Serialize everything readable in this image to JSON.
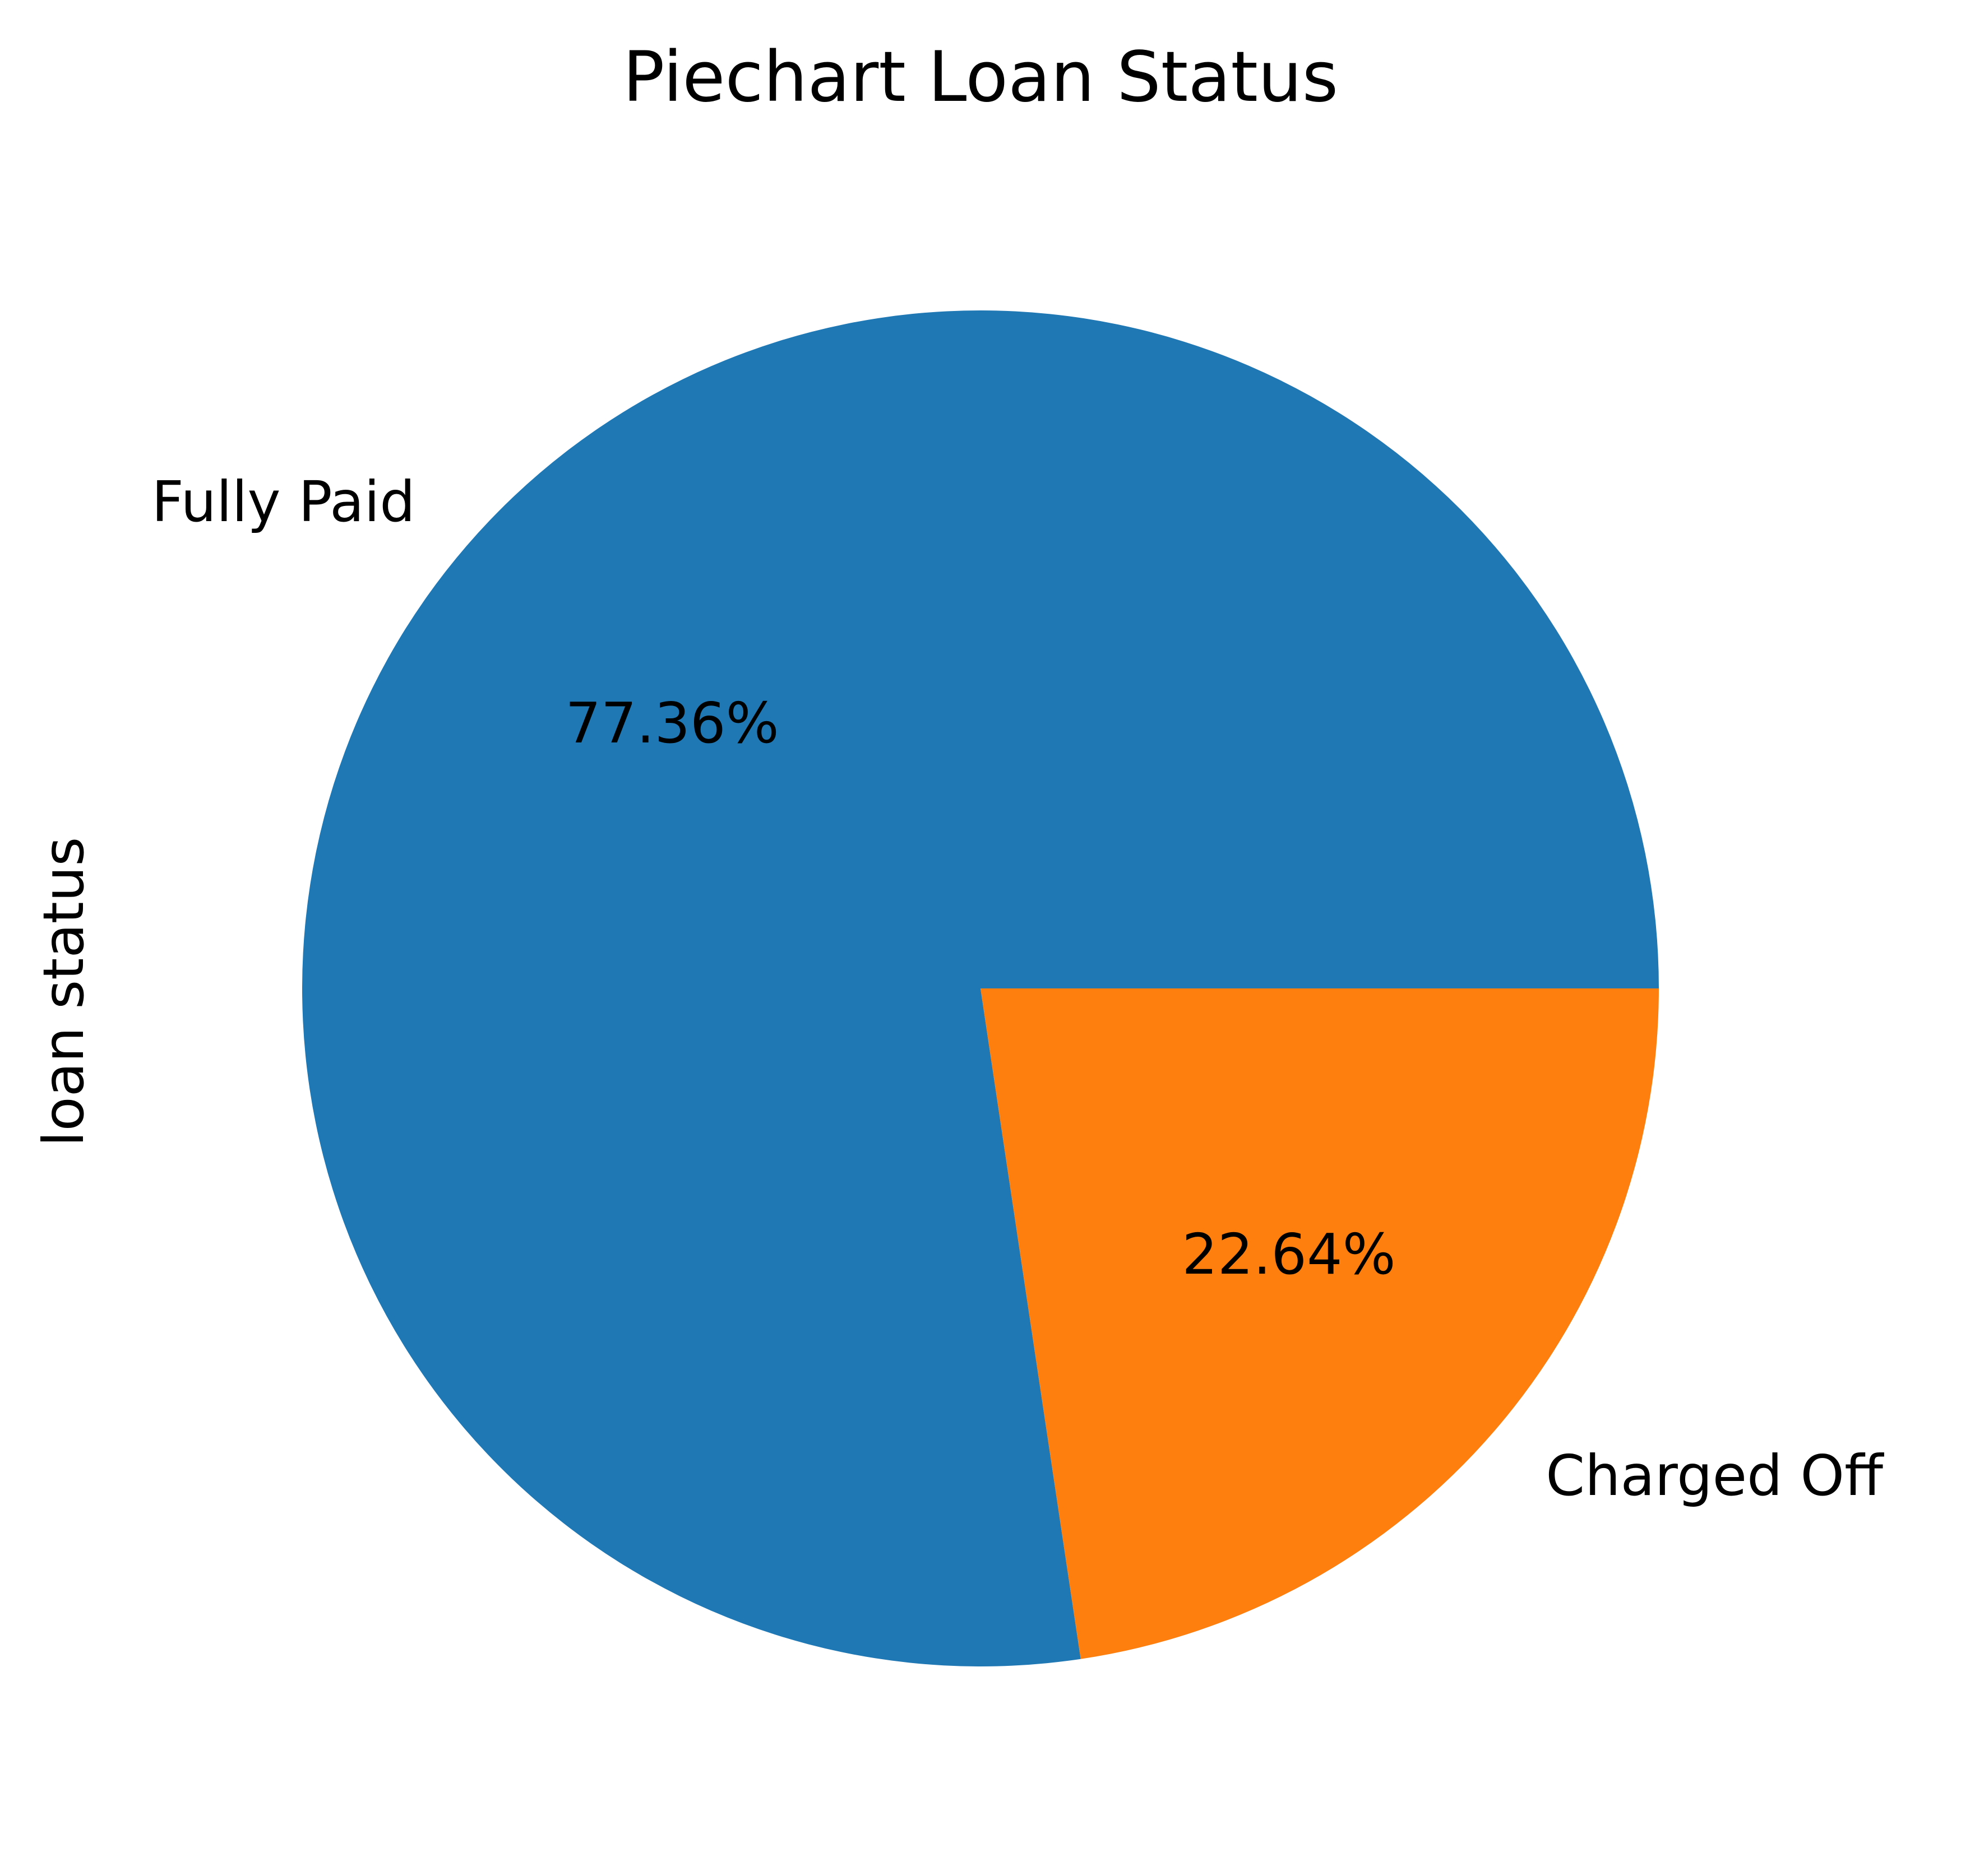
{
  "chart_data": {
    "type": "pie",
    "title": "Piechart Loan Status",
    "ylabel": "loan status",
    "slices": [
      {
        "name": "Fully Paid",
        "value": 77.36,
        "label": "77.36%",
        "color": "#1f77b4"
      },
      {
        "name": "Charged Off",
        "value": 22.64,
        "label": "22.64%",
        "color": "#ff7f0e"
      }
    ],
    "start_angle_deg": 0,
    "direction": "counterclockwise"
  }
}
